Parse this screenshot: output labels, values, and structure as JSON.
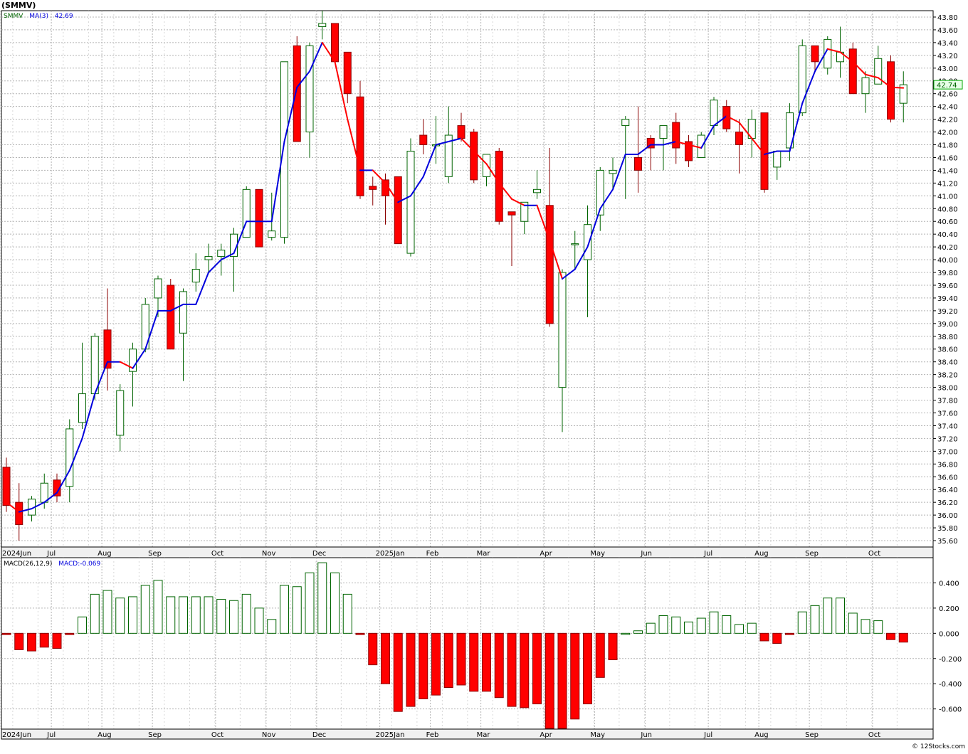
{
  "symbol_label": "(SMMV)",
  "footer": "© 12Stocks.com",
  "colors": {
    "up_stroke": "#006400",
    "up_fill": "#ffffff",
    "down_fill": "#ff0000",
    "down_stroke": "#8b0000",
    "ma_up": "#0000dd",
    "ma_down": "#ff0000",
    "grid": "#b4b4b4",
    "price_box": "#00aa00"
  },
  "chart_data": [
    {
      "type": "candlestick",
      "legend": {
        "name": "SMMV",
        "ma_label": "MA(3)",
        "ma_value": "42.69"
      },
      "last_price": "42.74",
      "ylim": [
        35.5,
        43.9
      ],
      "yticks": [
        "35.60",
        "35.80",
        "36.00",
        "36.20",
        "36.40",
        "36.60",
        "36.80",
        "37.00",
        "37.20",
        "37.40",
        "37.60",
        "37.80",
        "38.00",
        "38.20",
        "38.40",
        "38.60",
        "38.80",
        "39.00",
        "39.20",
        "39.40",
        "39.60",
        "39.80",
        "40.00",
        "40.20",
        "40.40",
        "40.60",
        "40.80",
        "41.00",
        "41.20",
        "41.40",
        "41.60",
        "41.80",
        "42.00",
        "42.20",
        "42.40",
        "42.60",
        "42.80",
        "43.00",
        "43.20",
        "43.40",
        "43.60",
        "43.80"
      ],
      "xtick_labels": [
        {
          "label": "2024Jun",
          "index": 0
        },
        {
          "label": "Jul",
          "index": 4
        },
        {
          "label": "Aug",
          "index": 8
        },
        {
          "label": "Sep",
          "index": 12
        },
        {
          "label": "Oct",
          "index": 17
        },
        {
          "label": "Nov",
          "index": 21
        },
        {
          "label": "Dec",
          "index": 25
        },
        {
          "label": "2025Jan",
          "index": 30
        },
        {
          "label": "Feb",
          "index": 34
        },
        {
          "label": "Mar",
          "index": 38
        },
        {
          "label": "Apr",
          "index": 43
        },
        {
          "label": "May",
          "index": 47
        },
        {
          "label": "Jun",
          "index": 51
        },
        {
          "label": "Jul",
          "index": 56
        },
        {
          "label": "Aug",
          "index": 60
        },
        {
          "label": "Sep",
          "index": 64
        },
        {
          "label": "Oct",
          "index": 69
        }
      ],
      "candles": [
        [
          36.75,
          36.9,
          36.05,
          36.15
        ],
        [
          36.2,
          36.5,
          35.6,
          35.85
        ],
        [
          36.0,
          36.3,
          35.9,
          36.25
        ],
        [
          36.2,
          36.65,
          36.1,
          36.5
        ],
        [
          36.55,
          36.65,
          36.2,
          36.3
        ],
        [
          36.45,
          37.5,
          36.2,
          37.35
        ],
        [
          37.45,
          38.7,
          37.35,
          37.9
        ],
        [
          37.9,
          38.85,
          37.8,
          38.8
        ],
        [
          38.9,
          39.55,
          37.95,
          38.3
        ],
        [
          37.25,
          38.05,
          37.0,
          37.95
        ],
        [
          38.25,
          38.7,
          37.7,
          38.6
        ],
        [
          38.6,
          39.4,
          38.55,
          39.3
        ],
        [
          39.4,
          39.75,
          39.1,
          39.7
        ],
        [
          39.6,
          39.7,
          38.6,
          38.6
        ],
        [
          38.85,
          39.55,
          38.1,
          39.5
        ],
        [
          39.65,
          40.1,
          39.5,
          39.85
        ],
        [
          40.0,
          40.25,
          39.8,
          40.05
        ],
        [
          40.05,
          40.25,
          39.75,
          40.15
        ],
        [
          40.05,
          40.5,
          39.5,
          40.4
        ],
        [
          40.35,
          41.15,
          40.35,
          41.1
        ],
        [
          41.1,
          41.1,
          40.2,
          40.2
        ],
        [
          40.35,
          41.05,
          40.3,
          40.45
        ],
        [
          40.35,
          43.1,
          40.25,
          43.1
        ],
        [
          43.35,
          43.5,
          41.9,
          41.85
        ],
        [
          42.0,
          43.4,
          41.6,
          43.35
        ],
        [
          43.65,
          43.9,
          43.45,
          43.7
        ],
        [
          43.7,
          43.7,
          43.1,
          43.1
        ],
        [
          43.25,
          43.25,
          42.45,
          42.6
        ],
        [
          42.55,
          42.8,
          40.95,
          41.0
        ],
        [
          41.15,
          41.3,
          40.85,
          41.1
        ],
        [
          41.25,
          41.35,
          40.55,
          41.0
        ],
        [
          41.3,
          41.3,
          40.25,
          40.25
        ],
        [
          40.1,
          41.9,
          40.05,
          41.7
        ],
        [
          41.95,
          42.2,
          41.65,
          41.8
        ],
        [
          41.8,
          42.25,
          41.5,
          41.8
        ],
        [
          41.3,
          42.4,
          41.2,
          41.95
        ],
        [
          42.1,
          42.3,
          41.85,
          41.9
        ],
        [
          42.0,
          42.05,
          41.2,
          41.25
        ],
        [
          41.3,
          41.6,
          41.15,
          41.65
        ],
        [
          41.7,
          41.75,
          40.55,
          40.6
        ],
        [
          40.75,
          40.75,
          39.9,
          40.7
        ],
        [
          40.6,
          40.9,
          40.4,
          40.9
        ],
        [
          41.05,
          41.4,
          40.95,
          41.1
        ],
        [
          40.85,
          41.75,
          38.95,
          39.0
        ],
        [
          38.0,
          39.85,
          37.3,
          39.8
        ],
        [
          40.25,
          40.45,
          39.85,
          40.25
        ],
        [
          40.0,
          40.85,
          39.1,
          40.55
        ],
        [
          40.7,
          41.45,
          40.45,
          41.4
        ],
        [
          41.35,
          41.6,
          41.1,
          41.4
        ],
        [
          42.1,
          42.25,
          40.95,
          42.2
        ],
        [
          41.6,
          42.4,
          41.05,
          41.4
        ],
        [
          41.9,
          41.95,
          41.4,
          41.75
        ],
        [
          41.9,
          42.1,
          41.4,
          42.1
        ],
        [
          42.15,
          42.3,
          41.5,
          41.75
        ],
        [
          41.85,
          41.95,
          41.45,
          41.55
        ],
        [
          41.6,
          42.0,
          41.6,
          41.95
        ],
        [
          42.1,
          42.55,
          41.95,
          42.5
        ],
        [
          42.4,
          42.5,
          42.0,
          42.05
        ],
        [
          42.0,
          42.2,
          41.35,
          41.8
        ],
        [
          41.9,
          42.35,
          41.6,
          42.2
        ],
        [
          42.3,
          42.3,
          41.05,
          41.1
        ],
        [
          41.45,
          41.7,
          41.25,
          41.7
        ],
        [
          41.75,
          42.45,
          41.55,
          42.3
        ],
        [
          42.3,
          43.45,
          42.25,
          43.35
        ],
        [
          43.35,
          43.35,
          42.95,
          43.1
        ],
        [
          43.0,
          43.5,
          42.9,
          43.45
        ],
        [
          43.1,
          43.65,
          42.85,
          43.25
        ],
        [
          43.3,
          43.4,
          42.6,
          42.6
        ],
        [
          42.6,
          42.95,
          42.3,
          42.85
        ],
        [
          42.75,
          43.35,
          42.75,
          43.15
        ],
        [
          43.1,
          43.2,
          42.15,
          42.2
        ],
        [
          42.45,
          42.95,
          42.15,
          42.74
        ]
      ],
      "ma": [
        36.2,
        36.05,
        36.1,
        36.2,
        36.35,
        36.7,
        37.2,
        37.9,
        38.4,
        38.4,
        38.3,
        38.6,
        39.2,
        39.2,
        39.3,
        39.3,
        39.8,
        40.0,
        40.1,
        40.6,
        40.6,
        40.6,
        41.85,
        42.7,
        42.95,
        43.4,
        43.1,
        42.2,
        41.4,
        41.4,
        41.2,
        40.9,
        41.0,
        41.3,
        41.8,
        41.85,
        41.9,
        41.7,
        41.5,
        41.2,
        40.95,
        40.85,
        40.85,
        40.3,
        39.7,
        39.85,
        40.2,
        40.8,
        41.1,
        41.65,
        41.65,
        41.8,
        41.8,
        41.85,
        41.8,
        41.75,
        42.1,
        42.25,
        42.15,
        41.9,
        41.65,
        41.7,
        41.7,
        42.45,
        42.95,
        43.3,
        43.25,
        43.1,
        42.9,
        42.85,
        42.7,
        42.69
      ]
    },
    {
      "type": "bar",
      "legend": {
        "name": "MACD(26,12,9)",
        "value_label": "MACD:-0.069"
      },
      "ylim": [
        -0.76,
        0.6
      ],
      "yticks": [
        "0.400",
        "0.200",
        "0.000",
        "-0.200",
        "-0.400",
        "-0.600"
      ],
      "values": [
        -0.01,
        -0.13,
        -0.14,
        -0.11,
        -0.12,
        -0.01,
        0.13,
        0.31,
        0.34,
        0.28,
        0.29,
        0.38,
        0.42,
        0.29,
        0.29,
        0.29,
        0.29,
        0.27,
        0.26,
        0.31,
        0.2,
        0.11,
        0.38,
        0.37,
        0.48,
        0.56,
        0.48,
        0.31,
        -0.01,
        -0.25,
        -0.4,
        -0.62,
        -0.58,
        -0.52,
        -0.49,
        -0.43,
        -0.41,
        -0.46,
        -0.46,
        -0.51,
        -0.58,
        -0.59,
        -0.56,
        -0.78,
        -0.78,
        -0.68,
        -0.56,
        -0.35,
        -0.21,
        0.0,
        0.02,
        0.08,
        0.14,
        0.13,
        0.09,
        0.12,
        0.17,
        0.14,
        0.07,
        0.08,
        -0.06,
        -0.08,
        -0.01,
        0.17,
        0.22,
        0.28,
        0.28,
        0.16,
        0.11,
        0.1,
        -0.05,
        -0.07
      ]
    }
  ]
}
